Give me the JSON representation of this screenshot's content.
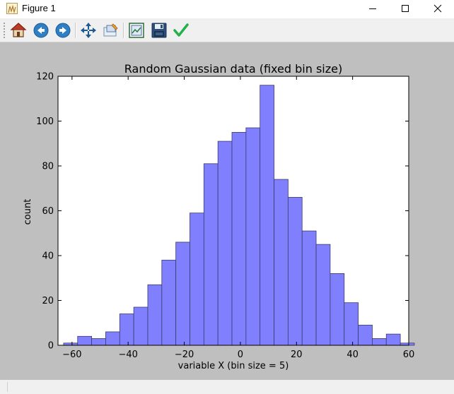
{
  "window": {
    "title": "Figure 1",
    "controls": [
      "minimize",
      "maximize",
      "close"
    ]
  },
  "toolbar": {
    "buttons": [
      {
        "name": "home",
        "icon": "home-icon"
      },
      {
        "name": "back",
        "icon": "back-arrow-icon"
      },
      {
        "name": "forward",
        "icon": "forward-arrow-icon"
      },
      {
        "name": "pan",
        "icon": "pan-move-icon"
      },
      {
        "name": "zoom",
        "icon": "zoom-rect-icon"
      },
      {
        "name": "subplots",
        "icon": "configure-subplots-icon"
      },
      {
        "name": "save",
        "icon": "floppy-disk-icon"
      },
      {
        "name": "edit",
        "icon": "checkmark-icon"
      }
    ]
  },
  "colors": {
    "bar_fill": "#8080ff",
    "bar_edge": "#3a3a6a",
    "figure_bg": "#bfbfbf",
    "axes_bg": "#ffffff"
  },
  "chart_data": {
    "type": "bar",
    "title": "Random Gaussian data (fixed bin size)",
    "xlabel": "variable X (bin size = 5)",
    "ylabel": "count",
    "xlim": [
      -65,
      60
    ],
    "ylim": [
      0,
      120
    ],
    "bin_size": 5,
    "bin_edges": [
      -63,
      -58,
      -53,
      -48,
      -43,
      -38,
      -33,
      -28,
      -23,
      -18,
      -13,
      -8,
      -3,
      2,
      7,
      12,
      17,
      22,
      27,
      32,
      37,
      42,
      47,
      52,
      57
    ],
    "values": [
      1,
      4,
      3,
      6,
      14,
      17,
      27,
      38,
      46,
      59,
      81,
      91,
      95,
      97,
      116,
      74,
      66,
      51,
      45,
      32,
      19,
      9,
      3,
      5,
      1
    ],
    "xticks": [
      -60,
      -40,
      -20,
      0,
      20,
      40,
      60
    ],
    "yticks": [
      0,
      20,
      40,
      60,
      80,
      100,
      120
    ],
    "grid": false
  }
}
